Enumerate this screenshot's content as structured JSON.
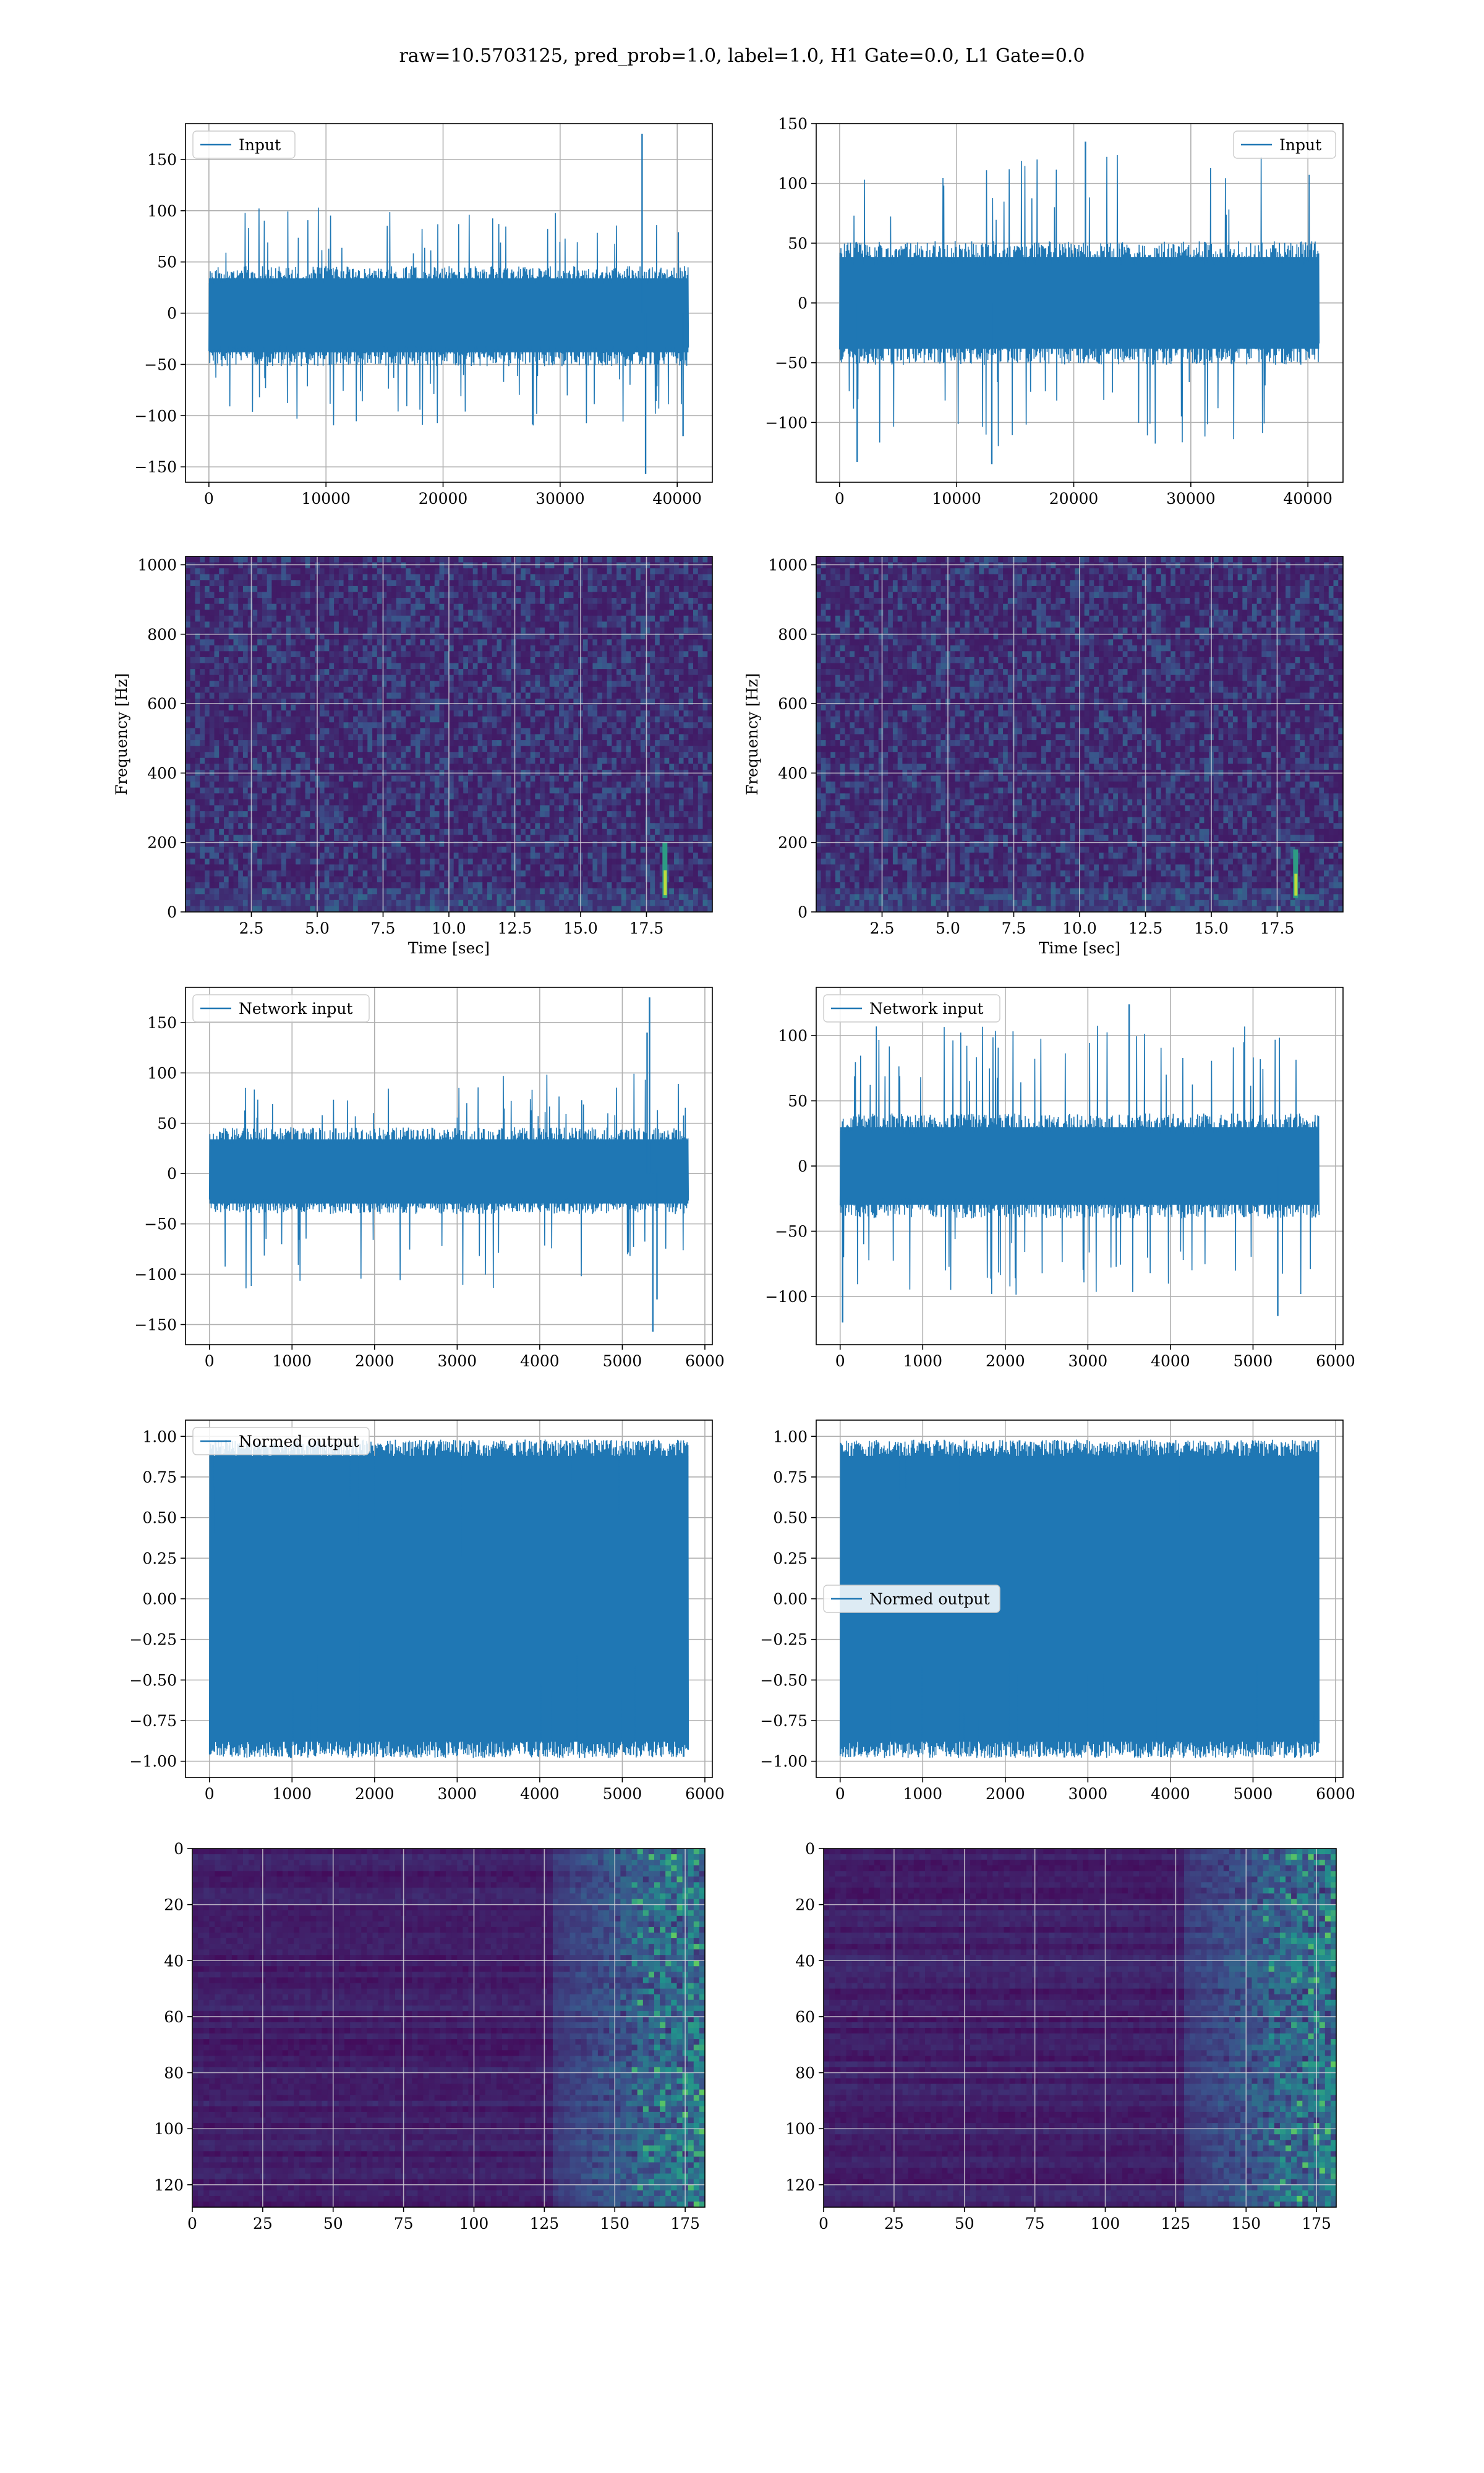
{
  "figure": {
    "title": "raw=10.5703125, pred_prob=1.0, label=1.0, H1 Gate=0.0, L1 Gate=0.0"
  },
  "colors": {
    "series": "#1f77b4",
    "grid": "#b0b0b0",
    "viridis_low": "#440154",
    "viridis_mid": "#21918c",
    "viridis_high": "#fde725"
  },
  "chart_data": [
    {
      "id": "r1c1",
      "type": "line",
      "style": "noise",
      "legend": [
        "Input"
      ],
      "legend_loc": "upper left",
      "xlim": [
        -2000,
        43000
      ],
      "ylim": [
        -165,
        185
      ],
      "xticks": [
        0,
        10000,
        20000,
        30000,
        40000
      ],
      "yticks": [
        -150,
        -100,
        -50,
        0,
        50,
        100,
        150
      ],
      "x_range": [
        0,
        40960
      ],
      "band": [
        -45,
        40
      ],
      "peak": [
        -110,
        105
      ],
      "spikes": [
        {
          "x": 37000,
          "y": 175
        },
        {
          "x": 37300,
          "y": -157
        },
        {
          "x": 40500,
          "y": -120
        }
      ],
      "seed": 11
    },
    {
      "id": "r1c2",
      "type": "line",
      "style": "noise",
      "legend": [
        "Input"
      ],
      "legend_loc": "upper right",
      "xlim": [
        -2000,
        43000
      ],
      "ylim": [
        -150,
        150
      ],
      "xticks": [
        0,
        10000,
        20000,
        30000,
        40000
      ],
      "yticks": [
        -100,
        -50,
        0,
        50,
        100,
        150
      ],
      "x_range": [
        0,
        40960
      ],
      "band": [
        -45,
        45
      ],
      "peak": [
        -120,
        125
      ],
      "spikes": [
        {
          "x": 1500,
          "y": -133
        },
        {
          "x": 13000,
          "y": -135
        },
        {
          "x": 21000,
          "y": 135
        }
      ],
      "seed": 23
    },
    {
      "id": "r2c1",
      "type": "heatmap",
      "style": "spectrogram",
      "xlim": [
        0.0,
        20.0
      ],
      "ylim": [
        0,
        1024
      ],
      "xticks": [
        2.5,
        5.0,
        7.5,
        10.0,
        12.5,
        15.0,
        17.5
      ],
      "yticks": [
        0,
        200,
        400,
        600,
        800,
        1000
      ],
      "xlabel": "Time [sec]",
      "ylabel": "Frequency [Hz]",
      "chirp": {
        "t": 18.2,
        "f_low": 40,
        "f_high": 200
      },
      "seed": 31
    },
    {
      "id": "r2c2",
      "type": "heatmap",
      "style": "spectrogram",
      "xlim": [
        0.0,
        20.0
      ],
      "ylim": [
        0,
        1024
      ],
      "xticks": [
        2.5,
        5.0,
        7.5,
        10.0,
        12.5,
        15.0,
        17.5
      ],
      "yticks": [
        0,
        200,
        400,
        600,
        800,
        1000
      ],
      "xlabel": "Time [sec]",
      "ylabel": "Frequency [Hz]",
      "chirp": {
        "t": 18.2,
        "f_low": 40,
        "f_high": 180
      },
      "seed": 47
    },
    {
      "id": "r3c1",
      "type": "line",
      "style": "noise",
      "legend": [
        "Network input"
      ],
      "legend_loc": "upper left",
      "xlim": [
        -290,
        6090
      ],
      "ylim": [
        -170,
        185
      ],
      "xticks": [
        0,
        1000,
        2000,
        3000,
        4000,
        5000,
        6000
      ],
      "yticks": [
        -150,
        -100,
        -50,
        0,
        50,
        100,
        150
      ],
      "x_range": [
        0,
        5800
      ],
      "band": [
        -35,
        40
      ],
      "peak": [
        -115,
        100
      ],
      "spikes": [
        {
          "x": 5330,
          "y": 175
        },
        {
          "x": 5370,
          "y": -157
        },
        {
          "x": 5300,
          "y": 140
        },
        {
          "x": 5420,
          "y": -125
        }
      ],
      "seed": 53
    },
    {
      "id": "r3c2",
      "type": "line",
      "style": "noise",
      "legend": [
        "Network input"
      ],
      "legend_loc": "upper left",
      "xlim": [
        -290,
        6090
      ],
      "ylim": [
        -137,
        137
      ],
      "xticks": [
        0,
        1000,
        2000,
        3000,
        4000,
        5000,
        6000
      ],
      "yticks": [
        -100,
        -50,
        0,
        50,
        100
      ],
      "x_range": [
        0,
        5800
      ],
      "band": [
        -35,
        35
      ],
      "peak": [
        -100,
        110
      ],
      "spikes": [
        {
          "x": 30,
          "y": -120
        },
        {
          "x": 3500,
          "y": 124
        },
        {
          "x": 5300,
          "y": -115
        }
      ],
      "seed": 67
    },
    {
      "id": "r4c1",
      "type": "line",
      "style": "normed",
      "legend": [
        "Normed output"
      ],
      "legend_loc": "upper left",
      "xlim": [
        -290,
        6090
      ],
      "ylim": [
        -1.1,
        1.1
      ],
      "xticks": [
        0,
        1000,
        2000,
        3000,
        4000,
        5000,
        6000
      ],
      "yticks": [
        -1.0,
        -0.75,
        -0.5,
        -0.25,
        0.0,
        0.25,
        0.5,
        0.75,
        1.0
      ],
      "x_range": [
        0,
        5800
      ],
      "seed": 71
    },
    {
      "id": "r4c2",
      "type": "line",
      "style": "normed",
      "legend": [
        "Normed output"
      ],
      "legend_loc": "center left",
      "xlim": [
        -290,
        6090
      ],
      "ylim": [
        -1.1,
        1.1
      ],
      "xticks": [
        0,
        1000,
        2000,
        3000,
        4000,
        5000,
        6000
      ],
      "yticks": [
        -1.0,
        -0.75,
        -0.5,
        -0.25,
        0.0,
        0.25,
        0.5,
        0.75,
        1.0
      ],
      "x_range": [
        0,
        5800
      ],
      "seed": 83
    },
    {
      "id": "r5c1",
      "type": "heatmap",
      "style": "features",
      "xlim": [
        0,
        182
      ],
      "ylim": [
        128,
        0
      ],
      "xticks": [
        0,
        25,
        50,
        75,
        100,
        125,
        150,
        175
      ],
      "yticks": [
        0,
        20,
        40,
        60,
        80,
        100,
        120
      ],
      "grid_x": [
        0,
        182
      ],
      "grid_y": [
        0,
        128
      ],
      "seed": 97
    },
    {
      "id": "r5c2",
      "type": "heatmap",
      "style": "features",
      "xlim": [
        0,
        182
      ],
      "ylim": [
        128,
        0
      ],
      "xticks": [
        0,
        25,
        50,
        75,
        100,
        125,
        150,
        175
      ],
      "yticks": [
        0,
        20,
        40,
        60,
        80,
        100,
        120
      ],
      "grid_x": [
        0,
        182
      ],
      "grid_y": [
        0,
        128
      ],
      "seed": 109
    }
  ]
}
